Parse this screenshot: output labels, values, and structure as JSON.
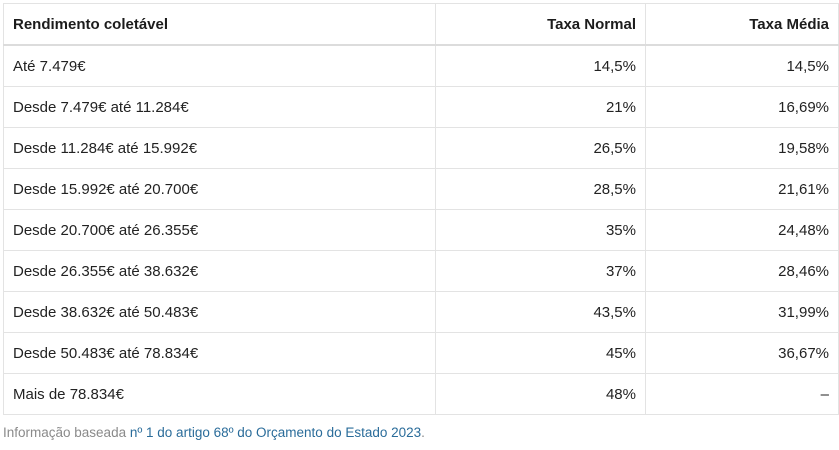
{
  "table": {
    "headers": [
      "Rendimento coletável",
      "Taxa Normal",
      "Taxa Média"
    ],
    "rows": [
      [
        "Até 7.479€",
        "14,5%",
        "14,5%"
      ],
      [
        "Desde 7.479€ até 11.284€",
        "21%",
        "16,69%"
      ],
      [
        "Desde 11.284€ até 15.992€",
        "26,5%",
        "19,58%"
      ],
      [
        "Desde 15.992€ até 20.700€",
        "28,5%",
        "21,61%"
      ],
      [
        "Desde 20.700€ até 26.355€",
        "35%",
        "24,48%"
      ],
      [
        "Desde 26.355€ até 38.632€",
        "37%",
        "28,46%"
      ],
      [
        "Desde 38.632€ até 50.483€",
        "43,5%",
        "31,99%"
      ],
      [
        "Desde 50.483€ até 78.834€",
        "45%",
        "36,67%"
      ],
      [
        "Mais de 78.834€",
        "48%",
        "–"
      ]
    ]
  },
  "footnote": {
    "prefix": "Informação baseada ",
    "link_text": "nº 1 do artigo 68º do Orçamento do Estado 2023",
    "suffix": "."
  }
}
